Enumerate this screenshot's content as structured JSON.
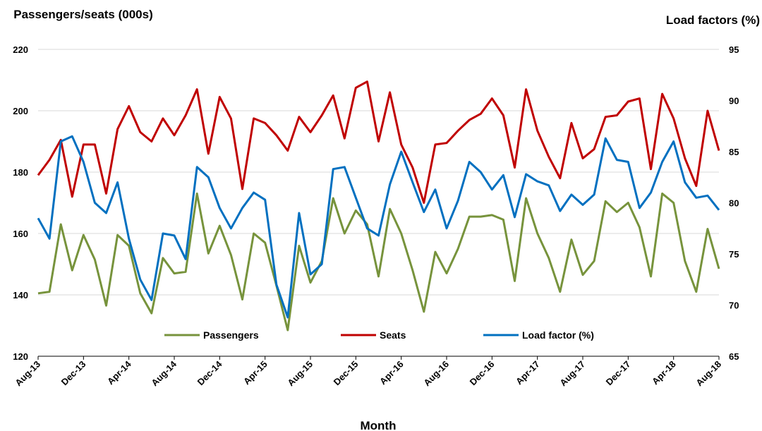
{
  "chart_data": {
    "type": "line",
    "y_left_title": "Passengers/seats (000s)",
    "y_right_title": "Load factors (%)",
    "xlabel": "Month",
    "y_left_lim": [
      120,
      220
    ],
    "y_left_ticks": [
      "120",
      "140",
      "160",
      "180",
      "200",
      "220"
    ],
    "y_right_lim": [
      65,
      95
    ],
    "y_right_ticks": [
      "65",
      "70",
      "75",
      "80",
      "85",
      "90",
      "95"
    ],
    "x_tick_labels": [
      "Aug-13",
      "Dec-13",
      "Apr-14",
      "Aug-14",
      "Dec-14",
      "Apr-15",
      "Aug-15",
      "Dec-15",
      "Apr-16",
      "Aug-16",
      "Dec-16",
      "Apr-17",
      "Aug-17",
      "Dec-17",
      "Apr-18",
      "Aug-18"
    ],
    "grid": "horizontal",
    "legend_position": "bottom-inside",
    "series": [
      {
        "name": "Passengers",
        "axis": "left",
        "color": "#77933c",
        "values": [
          140.5,
          141,
          163,
          148,
          159.5,
          151.5,
          136.5,
          159.5,
          156,
          140.5,
          134,
          152,
          147,
          147.5,
          173,
          153.5,
          162.5,
          153,
          138.5,
          160,
          157,
          143,
          128.5,
          156,
          144,
          151,
          171.5,
          160,
          167.5,
          163,
          146,
          168,
          160,
          148,
          134.5,
          154,
          147,
          155,
          165.5,
          165.5,
          166,
          164.5,
          144.5,
          171.5,
          160,
          152,
          141,
          158,
          146.5,
          151,
          170.5,
          167,
          170,
          162,
          146,
          173,
          170,
          151,
          141,
          161.5,
          148.5
        ]
      },
      {
        "name": "Seats",
        "axis": "left",
        "color": "#c00000",
        "values": [
          179,
          184,
          190.5,
          172,
          189,
          189,
          173,
          194,
          201.5,
          193,
          190,
          197.5,
          192,
          198.5,
          207,
          186,
          204.5,
          197.5,
          174.5,
          197.5,
          196,
          192,
          187,
          198,
          193,
          198.5,
          205,
          191,
          207.5,
          209.5,
          190,
          206,
          189,
          181.5,
          170,
          189,
          189.5,
          193.5,
          197,
          199,
          204,
          198.5,
          181.5,
          207,
          193.5,
          185,
          178,
          196,
          184.5,
          187.5,
          198,
          198.5,
          203,
          204,
          181,
          205.5,
          197.5,
          184.5,
          175.5,
          200,
          187
        ]
      },
      {
        "name": "Load factor (%)",
        "axis": "right",
        "color": "#0070c0",
        "values": [
          78.5,
          76.5,
          86,
          86.5,
          84,
          80,
          79,
          82,
          76.5,
          72.5,
          70.5,
          77,
          76.8,
          74.5,
          83.5,
          82.5,
          79.5,
          77.5,
          79.5,
          81,
          80.3,
          72,
          68.8,
          79,
          73,
          74,
          83.3,
          83.5,
          80.5,
          77.5,
          76.8,
          81.8,
          85,
          82,
          79.1,
          81.3,
          77.5,
          80.2,
          84,
          83,
          81.3,
          82.7,
          78.6,
          82.8,
          82.1,
          81.7,
          79.2,
          80.8,
          79.8,
          80.8,
          86.3,
          84.2,
          84,
          79.5,
          81,
          84,
          86,
          82,
          80.5,
          80.7,
          79.3
        ]
      }
    ]
  }
}
